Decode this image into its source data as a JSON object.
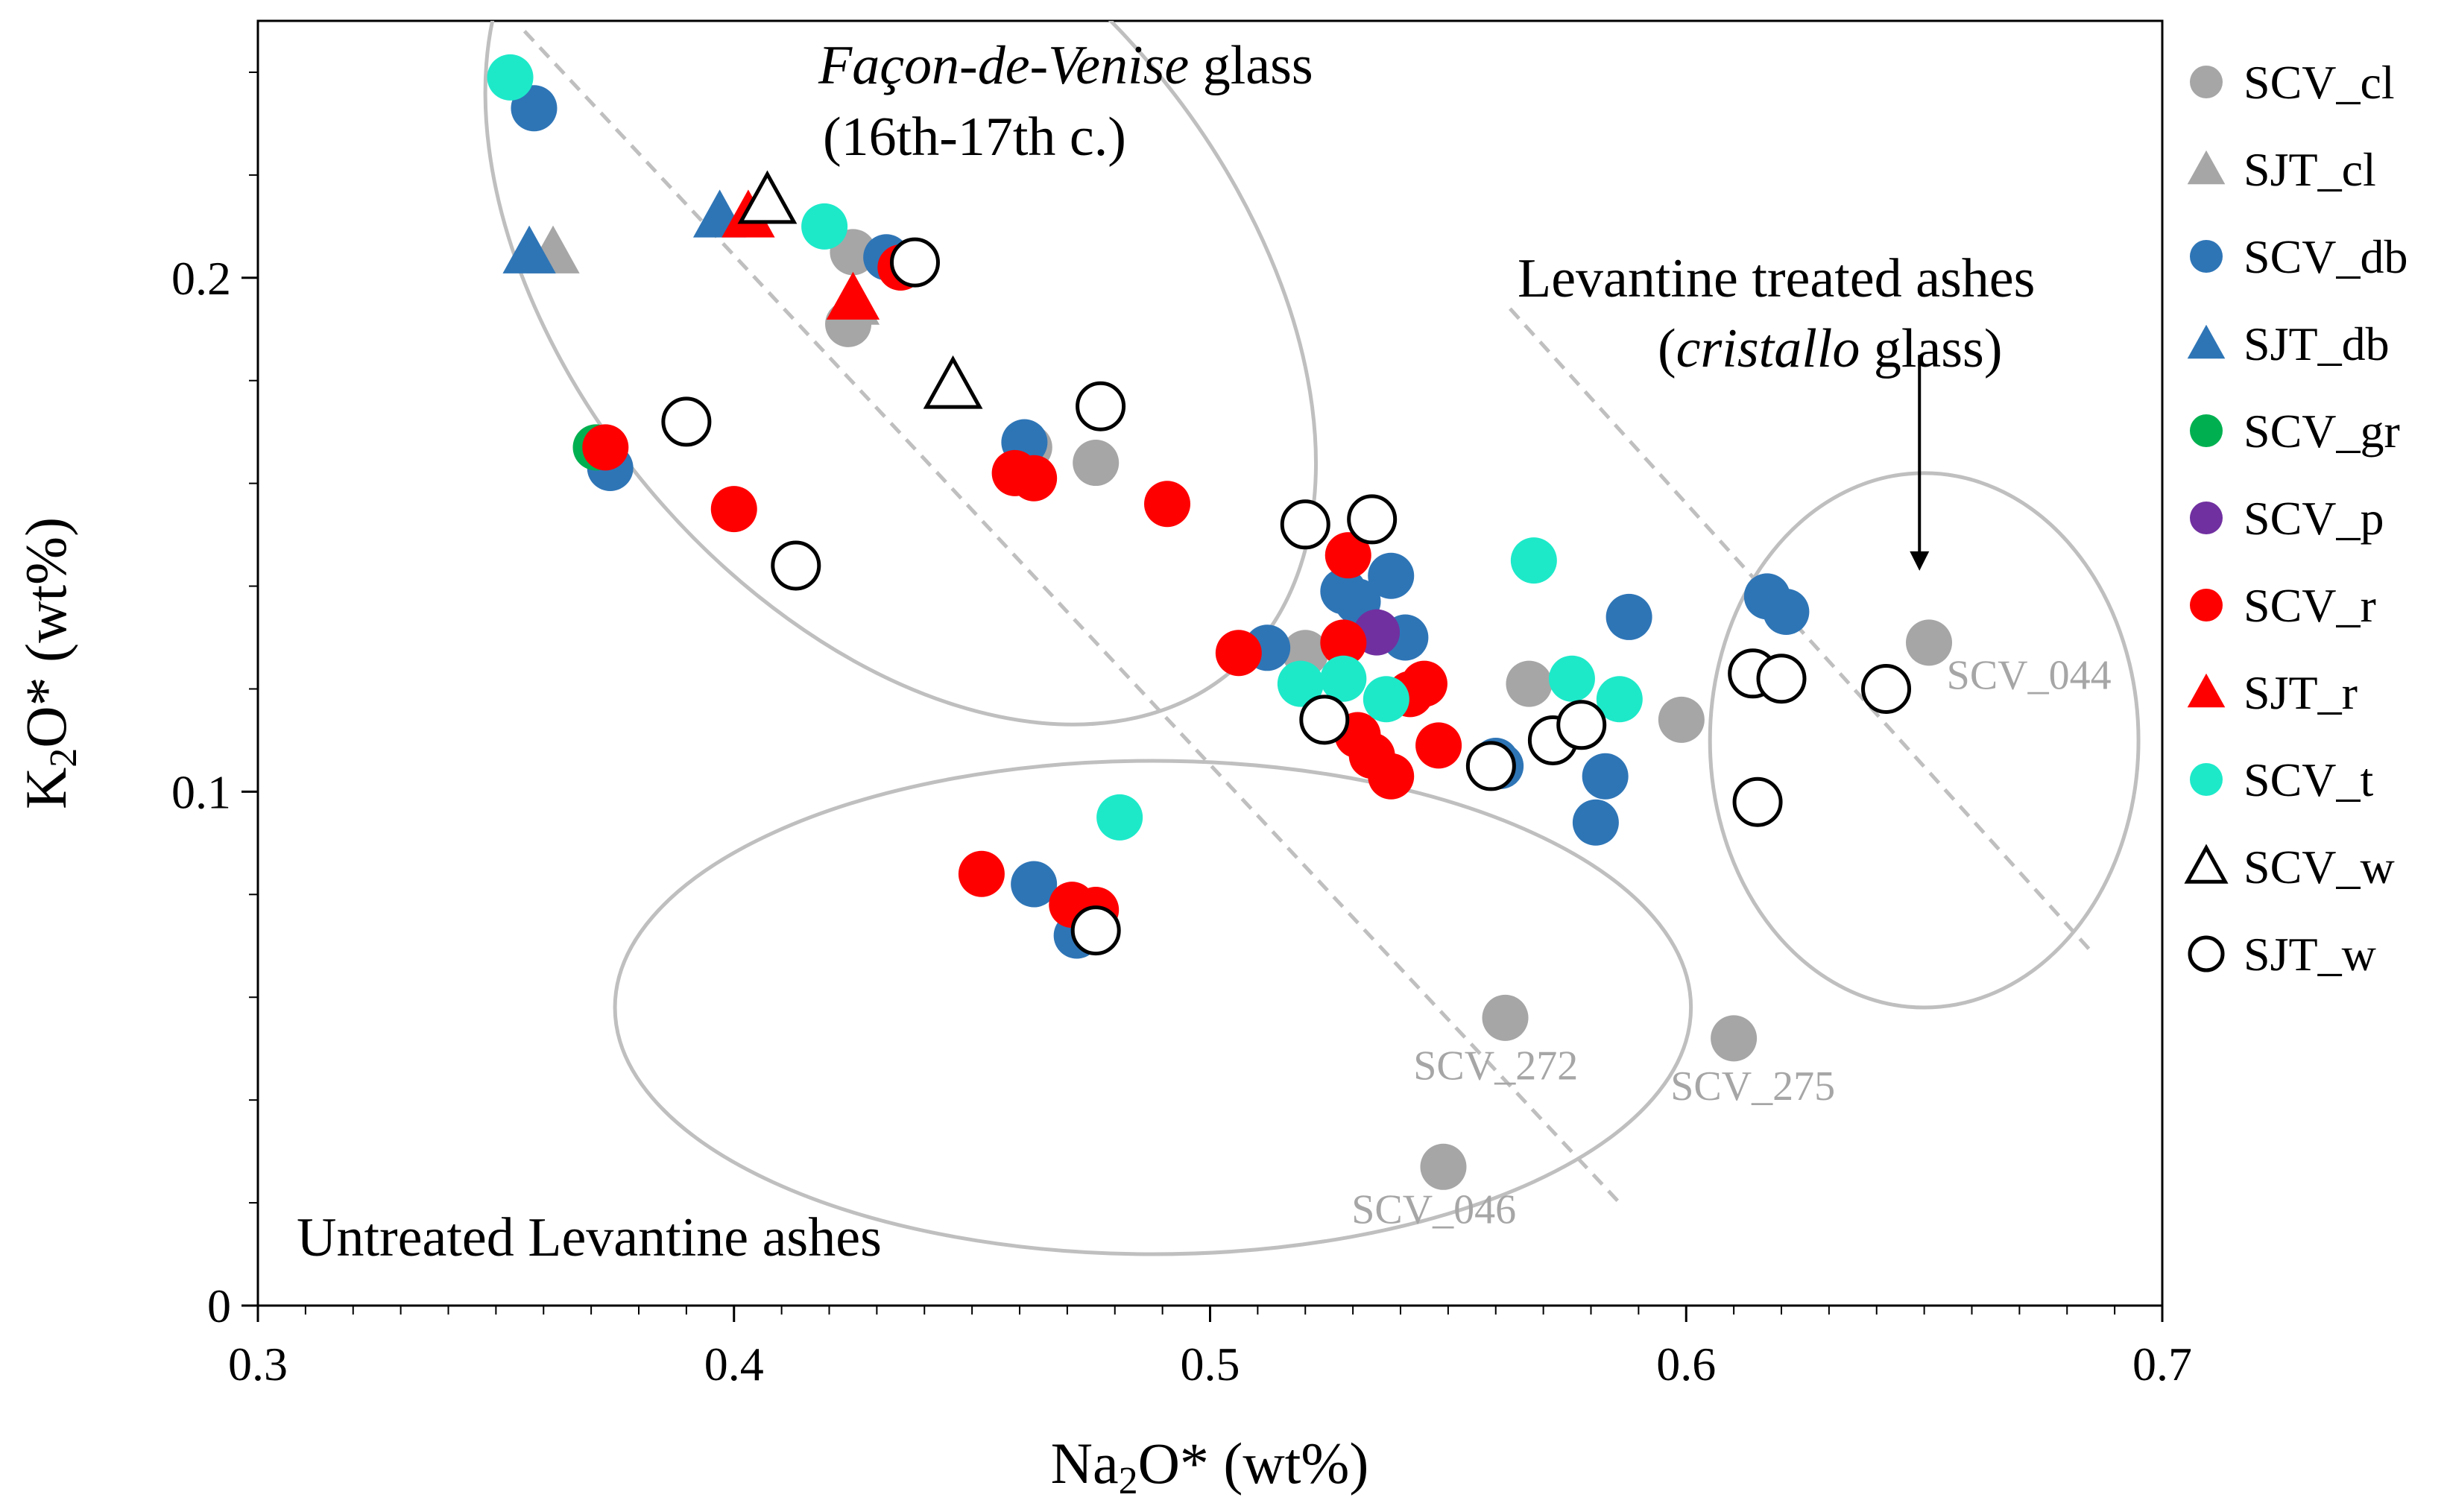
{
  "chart_data": {
    "type": "scatter",
    "title": "",
    "xlabel": {
      "main": "Na",
      "sub": "2",
      "rest": "O* (wt%)"
    },
    "ylabel": {
      "main": "K",
      "sub": "2",
      "rest": "O* (wt%)"
    },
    "xlim": [
      0.3,
      0.7
    ],
    "ylim": [
      0,
      0.25
    ],
    "x_ticks": [
      0.3,
      0.4,
      0.5,
      0.6,
      0.7
    ],
    "x_tick_labels": [
      "0.3",
      "0.4",
      "0.5",
      "0.6",
      "0.7"
    ],
    "y_ticks": [
      0,
      0.1,
      0.2
    ],
    "y_tick_labels": [
      "0",
      "0.1",
      "0.2"
    ],
    "x_minor_step": 0.01,
    "y_minor_step": 0.02,
    "colors": {
      "gray": "#a6a6a6",
      "blue": "#2e75b6",
      "green": "#00b050",
      "purple": "#7030a0",
      "red": "#ff0000",
      "cyan": "#1de9c9",
      "outline": "#000000",
      "region": "#bfbfbf",
      "frame": "#000000"
    },
    "legend": {
      "position": "right",
      "entries": [
        {
          "label": "SCV_cl",
          "marker": "circle",
          "color": "gray",
          "filled": true
        },
        {
          "label": "SJT_cl",
          "marker": "triangle",
          "color": "gray",
          "filled": true
        },
        {
          "label": "SCV_db",
          "marker": "circle",
          "color": "blue",
          "filled": true
        },
        {
          "label": "SJT_db",
          "marker": "triangle",
          "color": "blue",
          "filled": true
        },
        {
          "label": "SCV_gr",
          "marker": "circle",
          "color": "green",
          "filled": true
        },
        {
          "label": "SCV_p",
          "marker": "circle",
          "color": "purple",
          "filled": true
        },
        {
          "label": "SCV_r",
          "marker": "circle",
          "color": "red",
          "filled": true
        },
        {
          "label": "SJT_r",
          "marker": "triangle",
          "color": "red",
          "filled": true
        },
        {
          "label": "SCV_t",
          "marker": "circle",
          "color": "cyan",
          "filled": true
        },
        {
          "label": "SCV_w",
          "marker": "triangle",
          "color": "outline",
          "filled": false
        },
        {
          "label": "SJT_w",
          "marker": "circle",
          "color": "outline",
          "filled": false
        }
      ]
    },
    "series": [
      {
        "name": "SCV_cl",
        "marker": "circle",
        "color": "gray",
        "filled": true,
        "points": [
          [
            0.424,
            0.191
          ],
          [
            0.425,
            0.205
          ],
          [
            0.462,
            0.167
          ],
          [
            0.476,
            0.164
          ],
          [
            0.52,
            0.127
          ],
          [
            0.567,
            0.121
          ],
          [
            0.599,
            0.114
          ],
          [
            0.651,
            0.129
          ],
          [
            0.562,
            0.056
          ],
          [
            0.61,
            0.052
          ],
          [
            0.549,
            0.027
          ]
        ]
      },
      {
        "name": "SJT_cl",
        "marker": "triangle",
        "color": "gray",
        "filled": true,
        "points": [
          [
            0.362,
            0.205
          ],
          [
            0.425,
            0.195
          ]
        ]
      },
      {
        "name": "SCV_db",
        "marker": "circle",
        "color": "blue",
        "filled": true,
        "points": [
          [
            0.358,
            0.233
          ],
          [
            0.374,
            0.163
          ],
          [
            0.432,
            0.204
          ],
          [
            0.461,
            0.168
          ],
          [
            0.463,
            0.082
          ],
          [
            0.472,
            0.072
          ],
          [
            0.512,
            0.128
          ],
          [
            0.528,
            0.139
          ],
          [
            0.531,
            0.137
          ],
          [
            0.538,
            0.142
          ],
          [
            0.541,
            0.13
          ],
          [
            0.56,
            0.106
          ],
          [
            0.561,
            0.105
          ],
          [
            0.581,
            0.094
          ],
          [
            0.583,
            0.103
          ],
          [
            0.588,
            0.134
          ],
          [
            0.617,
            0.138
          ],
          [
            0.621,
            0.135
          ]
        ]
      },
      {
        "name": "SJT_db",
        "marker": "triangle",
        "color": "blue",
        "filled": true,
        "points": [
          [
            0.357,
            0.205
          ],
          [
            0.397,
            0.212
          ]
        ]
      },
      {
        "name": "SCV_gr",
        "marker": "circle",
        "color": "green",
        "filled": true,
        "points": [
          [
            0.371,
            0.167
          ]
        ]
      },
      {
        "name": "SCV_p",
        "marker": "circle",
        "color": "purple",
        "filled": true,
        "points": [
          [
            0.535,
            0.131
          ]
        ]
      },
      {
        "name": "SCV_r",
        "marker": "circle",
        "color": "red",
        "filled": true,
        "points": [
          [
            0.373,
            0.167
          ],
          [
            0.4,
            0.155
          ],
          [
            0.435,
            0.202
          ],
          [
            0.459,
            0.162
          ],
          [
            0.463,
            0.161
          ],
          [
            0.491,
            0.156
          ],
          [
            0.452,
            0.084
          ],
          [
            0.471,
            0.078
          ],
          [
            0.476,
            0.077
          ],
          [
            0.506,
            0.127
          ],
          [
            0.529,
            0.146
          ],
          [
            0.528,
            0.129
          ],
          [
            0.531,
            0.111
          ],
          [
            0.534,
            0.107
          ],
          [
            0.538,
            0.103
          ],
          [
            0.542,
            0.119
          ],
          [
            0.545,
            0.121
          ],
          [
            0.548,
            0.109
          ]
        ]
      },
      {
        "name": "SJT_r",
        "marker": "triangle",
        "color": "red",
        "filled": true,
        "points": [
          [
            0.403,
            0.212
          ],
          [
            0.425,
            0.196
          ]
        ]
      },
      {
        "name": "SCV_t",
        "marker": "circle",
        "color": "cyan",
        "filled": true,
        "points": [
          [
            0.353,
            0.239
          ],
          [
            0.419,
            0.21
          ],
          [
            0.481,
            0.095
          ],
          [
            0.519,
            0.121
          ],
          [
            0.528,
            0.122
          ],
          [
            0.537,
            0.118
          ],
          [
            0.568,
            0.145
          ],
          [
            0.576,
            0.122
          ],
          [
            0.586,
            0.118
          ]
        ]
      },
      {
        "name": "SCV_w",
        "marker": "triangle",
        "color": "outline",
        "filled": false,
        "points": [
          [
            0.407,
            0.215
          ],
          [
            0.446,
            0.179
          ]
        ]
      },
      {
        "name": "SJT_w",
        "marker": "circle",
        "color": "outline",
        "filled": false,
        "points": [
          [
            0.39,
            0.172
          ],
          [
            0.413,
            0.144
          ],
          [
            0.438,
            0.203
          ],
          [
            0.477,
            0.175
          ],
          [
            0.476,
            0.073
          ],
          [
            0.52,
            0.152
          ],
          [
            0.534,
            0.153
          ],
          [
            0.524,
            0.114
          ],
          [
            0.559,
            0.105
          ],
          [
            0.572,
            0.11
          ],
          [
            0.578,
            0.113
          ],
          [
            0.614,
            0.123
          ],
          [
            0.62,
            0.122
          ],
          [
            0.615,
            0.098
          ],
          [
            0.642,
            0.12
          ]
        ]
      }
    ],
    "regions": [
      {
        "name": "facon-de-venise-region",
        "center": [
          0.435,
          0.2
        ],
        "semi_axes": [
          0.069,
          0.1
        ],
        "rotation_deg": -40
      },
      {
        "name": "untreated-ashes-region",
        "center": [
          0.488,
          0.058
        ],
        "semi_axes": [
          0.113,
          0.048
        ],
        "rotation_deg": 0
      },
      {
        "name": "cristallo-region",
        "center": [
          0.65,
          0.11
        ],
        "semi_axes": [
          0.045,
          0.052
        ],
        "rotation_deg": 0
      }
    ],
    "trend_lines": [
      {
        "name": "trend-line-left",
        "from": [
          0.356,
          0.248
        ],
        "to": [
          0.586,
          0.02
        ]
      },
      {
        "name": "trend-line-right",
        "from": [
          0.563,
          0.194
        ],
        "to": [
          0.685,
          0.069
        ]
      }
    ],
    "annotations": {
      "facon_italic": "Façon-de-Venise",
      "facon_rest": " glass",
      "facon_century": "(16th-17th c.)",
      "levantine_line1": "Levantine treated ashes",
      "levantine_open": "(",
      "levantine_italic": "cristallo",
      "levantine_close": " glass)",
      "untreated": "Untreated Levantine ashes",
      "sample_labels": [
        {
          "text": "SCV_044",
          "x": 0.672,
          "y": 0.12
        },
        {
          "text": "SCV_272",
          "x": 0.56,
          "y": 0.044
        },
        {
          "text": "SCV_275",
          "x": 0.614,
          "y": 0.04
        },
        {
          "text": "SCV_046",
          "x": 0.547,
          "y": 0.016
        }
      ],
      "arrow": {
        "from": [
          0.649,
          0.185
        ],
        "to": [
          0.649,
          0.143
        ]
      }
    }
  }
}
